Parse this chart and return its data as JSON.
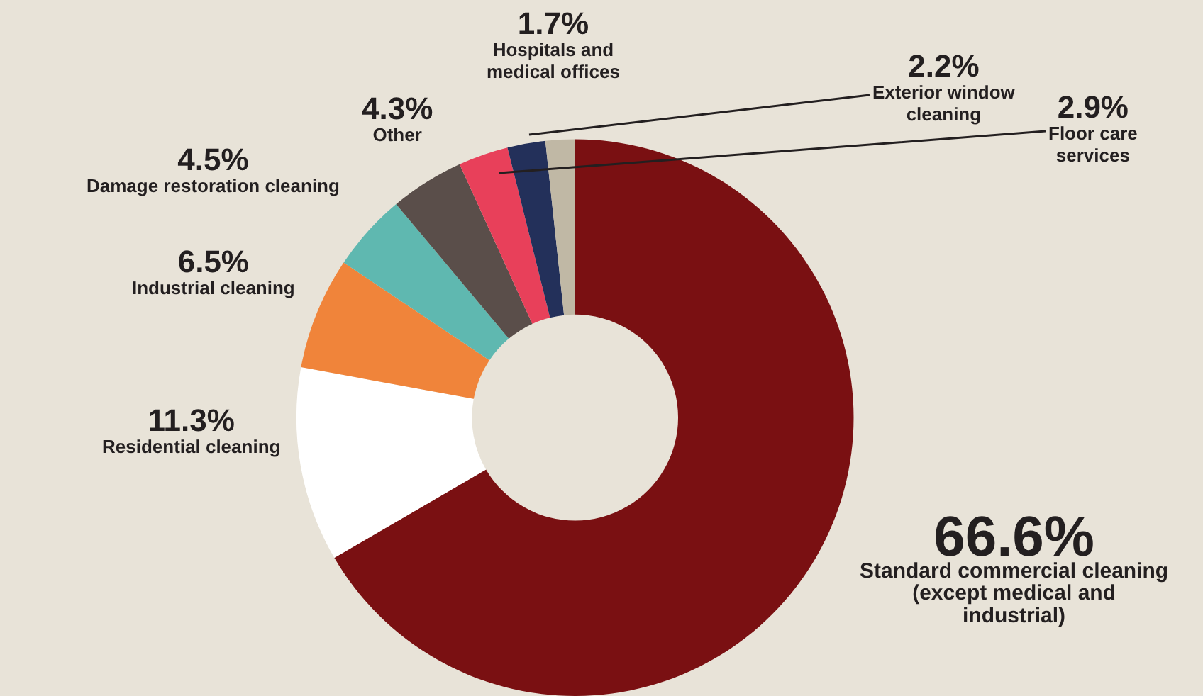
{
  "chart_data": {
    "type": "donut",
    "categories": [
      "Standard commercial cleaning (except medical and industrial)",
      "Residential cleaning",
      "Industrial cleaning",
      "Damage restoration cleaning",
      "Other",
      "Floor care services",
      "Exterior window cleaning",
      "Hospitals and medical offices"
    ],
    "values": [
      66.6,
      11.3,
      6.5,
      4.5,
      4.3,
      2.9,
      2.2,
      1.7
    ],
    "value_labels": [
      "66.6%",
      "11.3%",
      "6.5%",
      "4.5%",
      "4.3%",
      "2.9%",
      "2.2%",
      "1.7%"
    ],
    "colors": [
      "#7a1012",
      "#ffffff",
      "#f0843a",
      "#5fb8b0",
      "#5a4e4a",
      "#e8405a",
      "#23305a",
      "#c0b8a5"
    ],
    "legend": false
  }
}
